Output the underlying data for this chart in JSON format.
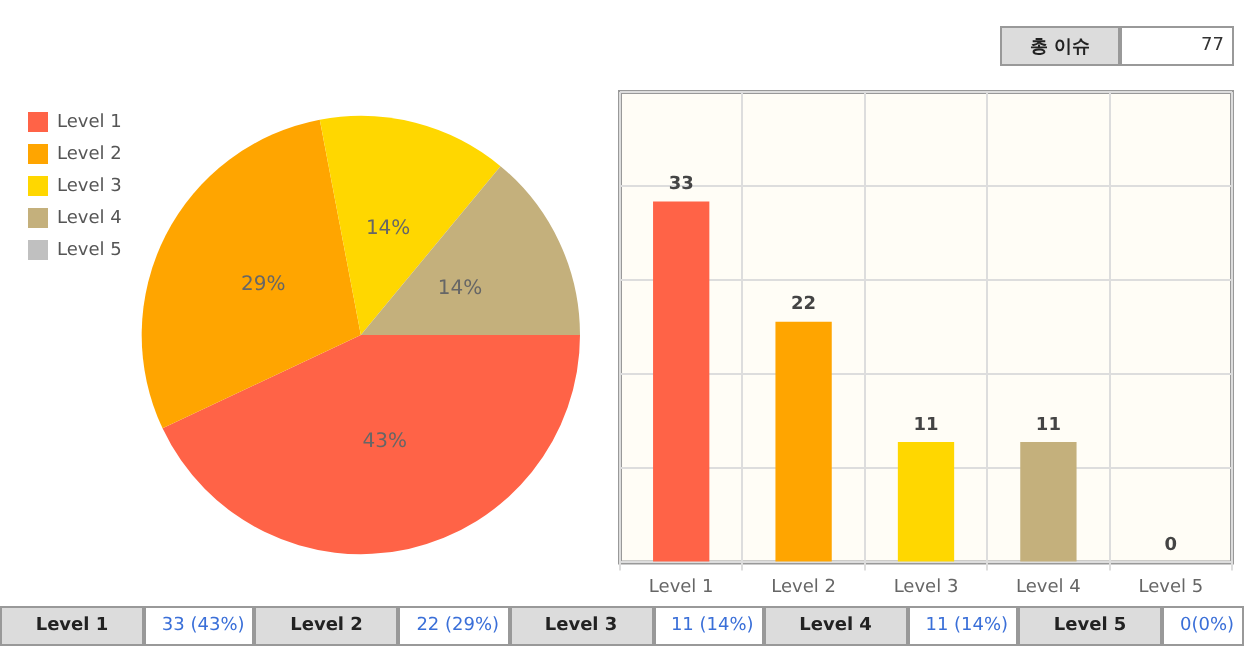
{
  "chart_data": [
    {
      "type": "other",
      "annotations": [
        "총 이슈",
        "77"
      ]
    },
    {
      "type": "pie",
      "categories": [
        "Level 1",
        "Level 2",
        "Level 3",
        "Level 4",
        "Level 5"
      ],
      "values": [
        43,
        29,
        14,
        14,
        0
      ],
      "colors": [
        "#ff6347",
        "#ffa500",
        "#ffd700",
        "#c4b07c",
        "#c0c0c0"
      ],
      "value_labels": [
        "43%",
        "29%",
        "14%",
        "14%",
        null
      ],
      "legend": "top left"
    },
    {
      "type": "bar",
      "categories": [
        "Level 1",
        "Level 2",
        "Level 3",
        "Level 4",
        "Level 5"
      ],
      "values": [
        33,
        22,
        11,
        11,
        0
      ],
      "colors": [
        "#ff6347",
        "#ffa500",
        "#ffd700",
        "#c4b07c",
        "#c0c0c0"
      ],
      "data_labels": true,
      "grid": true,
      "ylim": [
        0,
        43
      ],
      "yticks": [
        {
          "value": 0,
          "label": null
        },
        {
          "value": 8.6,
          "label": null
        },
        {
          "value": 17.2,
          "label": null
        },
        {
          "value": 25.8,
          "label": null
        },
        {
          "value": 34.4,
          "label": null
        },
        {
          "value": 43,
          "label": null
        }
      ],
      "tick_labels": "x"
    },
    {
      "type": "other",
      "annotations": [
        "Level 1",
        "33 (43%)",
        "Level 2",
        "22 (29%)",
        "Level 3",
        "11 (14%)",
        "Level 4",
        "11 (14%)",
        "Level 5",
        "0(0%)"
      ]
    }
  ]
}
